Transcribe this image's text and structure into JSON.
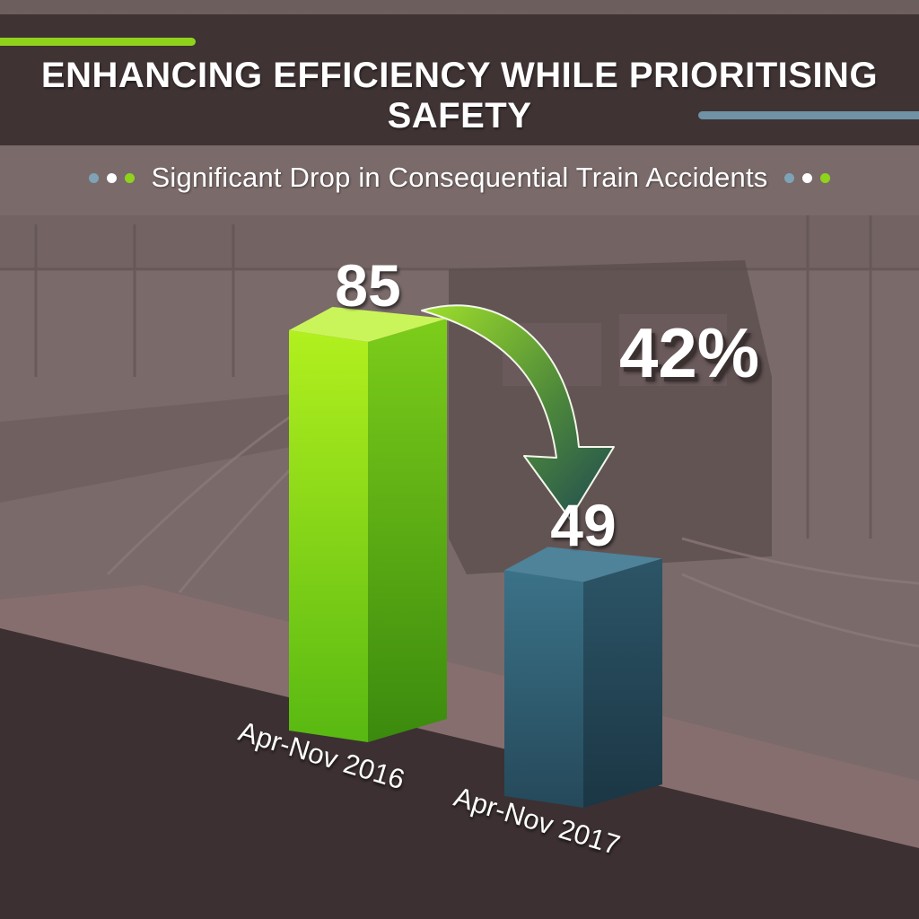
{
  "header": {
    "title": "ENHANCING EFFICIENCY WHILE PRIORITISING SAFETY",
    "subtitle": "Significant Drop in Consequential Train Accidents"
  },
  "colors": {
    "header_bg": "#3f3334",
    "accent_green": "#8fd41a",
    "accent_blue": "#6f92a4",
    "dot_blue": "#7fa3b6",
    "dot_white": "#ffffff",
    "dot_green": "#8fd41a",
    "bar_2016": "#7ccd1a",
    "bar_2017": "#2b5a6c"
  },
  "chart_data": {
    "type": "bar",
    "title": "Significant Drop in Consequential Train Accidents",
    "categories": [
      "Apr-Nov 2016",
      "Apr-Nov 2017"
    ],
    "values": [
      85,
      49
    ],
    "value_labels": [
      "85",
      "49"
    ],
    "change_label": "42%",
    "xlabel": "",
    "ylabel": "",
    "grid": false,
    "legend": "none"
  }
}
